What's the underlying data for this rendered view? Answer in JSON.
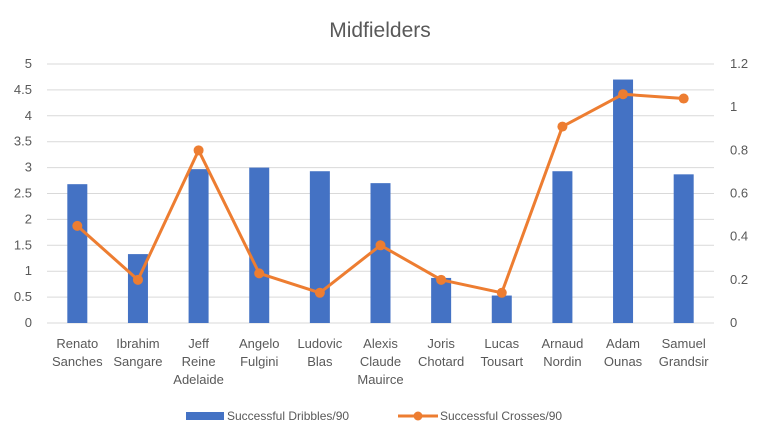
{
  "chart_data": {
    "type": "bar+line",
    "title": "Midfielders",
    "categories": [
      [
        "Renato",
        "Sanches"
      ],
      [
        "Ibrahim",
        "Sangare"
      ],
      [
        "Jeff",
        "Reine",
        "Adelaide"
      ],
      [
        "Angelo",
        "Fulgini"
      ],
      [
        "Ludovic",
        "Blas"
      ],
      [
        "Alexis",
        "Claude",
        "Mauirce"
      ],
      [
        "Joris",
        "Chotard"
      ],
      [
        "Lucas",
        "Tousart"
      ],
      [
        "Arnaud",
        "Nordin"
      ],
      [
        "Adam",
        "Ounas"
      ],
      [
        "Samuel",
        "Grandsir"
      ]
    ],
    "series": [
      {
        "name": "Successful Dribbles/90",
        "type": "bar",
        "axis": "left",
        "color": "#4472c4",
        "values": [
          2.68,
          1.33,
          2.97,
          3.0,
          2.93,
          2.7,
          0.87,
          0.53,
          2.93,
          4.7,
          2.87
        ]
      },
      {
        "name": "Successful Crosses/90",
        "type": "line",
        "axis": "right",
        "color": "#ed7d31",
        "values": [
          0.45,
          0.2,
          0.8,
          0.23,
          0.14,
          0.36,
          0.2,
          0.14,
          0.91,
          1.06,
          1.04
        ]
      }
    ],
    "y_left": {
      "min": 0,
      "max": 5,
      "step": 0.5,
      "tick_labels": [
        "0",
        "0.5",
        "1",
        "1.5",
        "2",
        "2.5",
        "3",
        "3.5",
        "4",
        "4.5",
        "5"
      ]
    },
    "y_right": {
      "min": 0,
      "max": 1.2,
      "step": 0.2,
      "tick_labels": [
        "0",
        "0.2",
        "0.4",
        "0.6",
        "0.8",
        "1",
        "1.2"
      ]
    },
    "grid": true,
    "legend_position": "bottom"
  }
}
